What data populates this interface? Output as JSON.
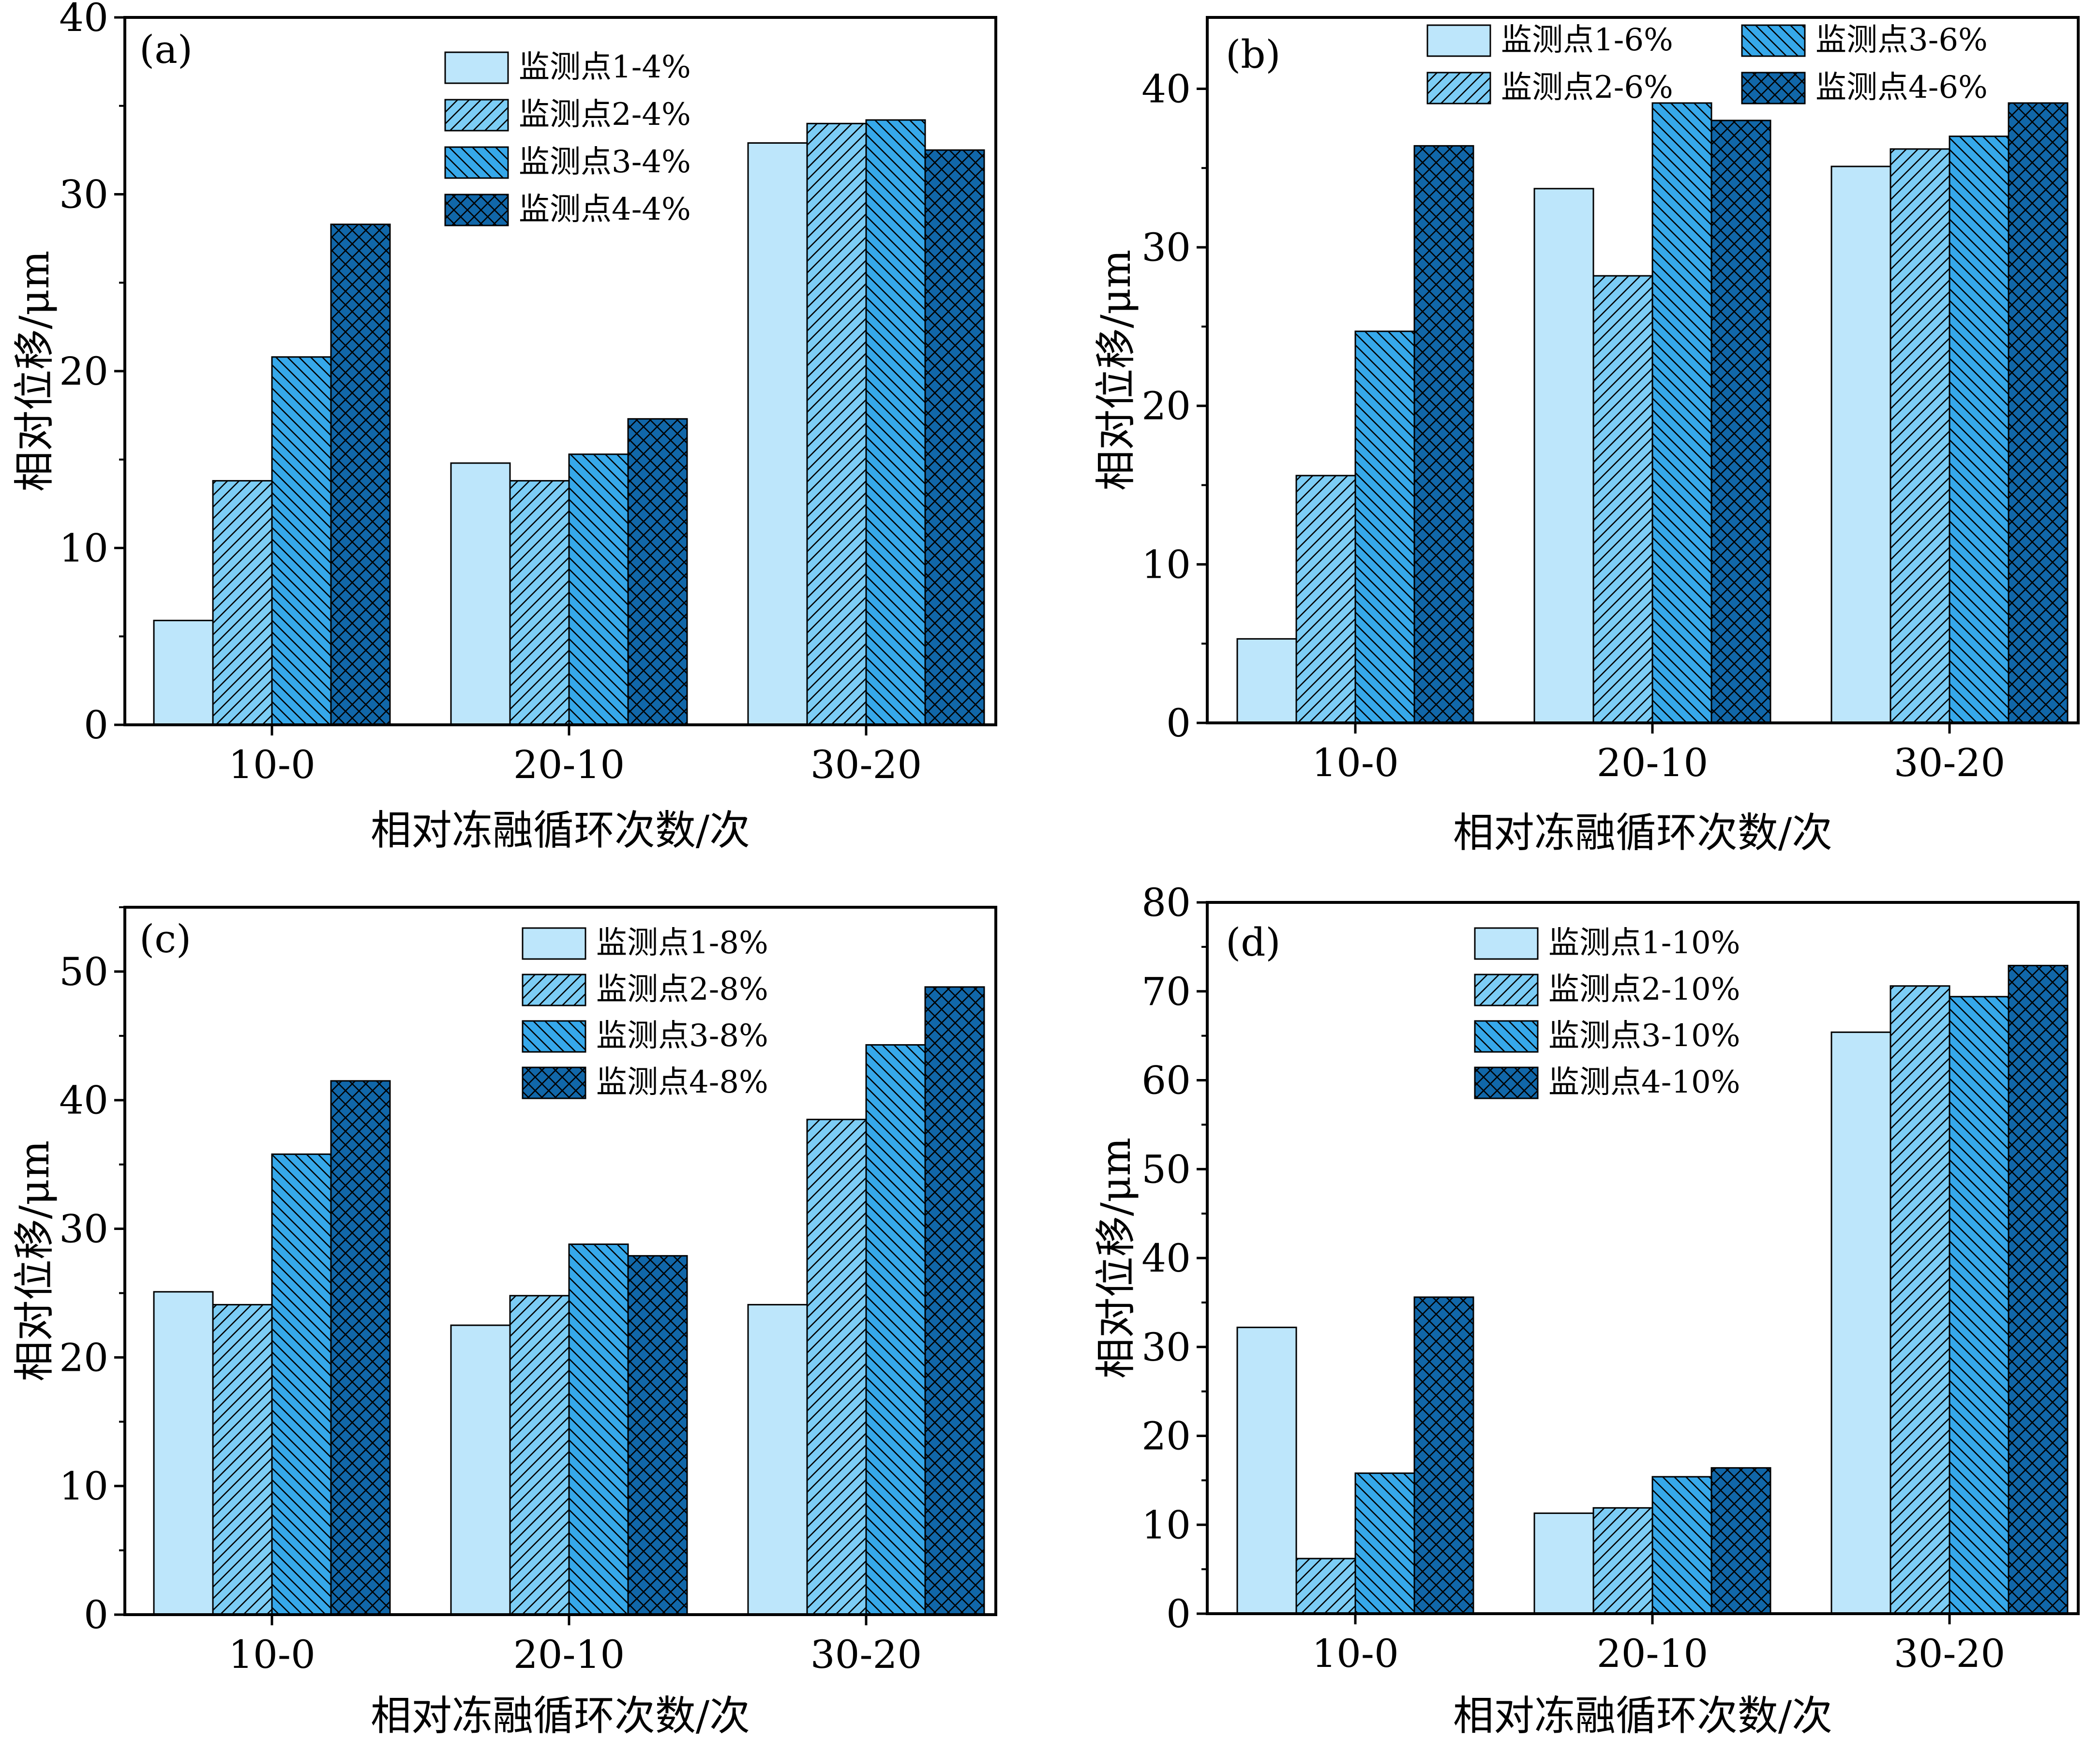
{
  "figure": {
    "colors": {
      "series1": "#bde6fb",
      "series2": "#7ccdf5",
      "series3": "#36a8ea",
      "series4": "#1167a9",
      "stroke": "#000000",
      "hatch": "#000000"
    },
    "patterns": [
      "none",
      "diag-forward",
      "diag-back",
      "crosshatch"
    ]
  },
  "chart_data": [
    {
      "type": "bar",
      "panel_label": "(a)",
      "title": "",
      "xlabel": "相对冻融循环次数/次",
      "ylabel": "相对位移/μm",
      "categories": [
        "10-0",
        "20-10",
        "30-20"
      ],
      "ylim": [
        0,
        40
      ],
      "yticks": [
        0,
        10,
        20,
        30,
        40
      ],
      "legend_position": "top-center",
      "legend_columns": 1,
      "series": [
        {
          "name": "监测点1-4%",
          "values": [
            5.9,
            14.8,
            32.9
          ]
        },
        {
          "name": "监测点2-4%",
          "values": [
            13.8,
            13.8,
            34.0
          ]
        },
        {
          "name": "监测点3-4%",
          "values": [
            20.8,
            15.3,
            34.2
          ]
        },
        {
          "name": "监测点4-4%",
          "values": [
            28.3,
            17.3,
            32.5
          ]
        }
      ]
    },
    {
      "type": "bar",
      "panel_label": "(b)",
      "title": "",
      "xlabel": "相对冻融循环次数/次",
      "ylabel": "相对位移/μm",
      "categories": [
        "10-0",
        "20-10",
        "30-20"
      ],
      "ylim": [
        0,
        44.5
      ],
      "yticks": [
        0,
        10,
        20,
        30,
        40
      ],
      "legend_position": "top",
      "legend_columns": 2,
      "series": [
        {
          "name": "监测点1-6%",
          "values": [
            5.3,
            33.7,
            35.1
          ]
        },
        {
          "name": "监测点2-6%",
          "values": [
            15.6,
            28.2,
            36.2
          ]
        },
        {
          "name": "监测点3-6%",
          "values": [
            24.7,
            39.1,
            37.0
          ]
        },
        {
          "name": "监测点4-6%",
          "values": [
            36.4,
            38.0,
            39.1
          ]
        }
      ]
    },
    {
      "type": "bar",
      "panel_label": "(c)",
      "title": "",
      "xlabel": "相对冻融循环次数/次",
      "ylabel": "相对位移/μm",
      "categories": [
        "10-0",
        "20-10",
        "30-20"
      ],
      "ylim": [
        0,
        55
      ],
      "yticks": [
        0,
        10,
        20,
        30,
        40,
        50
      ],
      "legend_position": "top-right",
      "legend_columns": 1,
      "series": [
        {
          "name": "监测点1-8%",
          "values": [
            25.1,
            22.5,
            24.1
          ]
        },
        {
          "name": "监测点2-8%",
          "values": [
            24.1,
            24.8,
            38.5
          ]
        },
        {
          "name": "监测点3-8%",
          "values": [
            35.8,
            28.8,
            44.3
          ]
        },
        {
          "name": "监测点4-8%",
          "values": [
            41.5,
            27.9,
            48.8
          ]
        }
      ]
    },
    {
      "type": "bar",
      "panel_label": "(d)",
      "title": "",
      "xlabel": "相对冻融循环次数/次",
      "ylabel": "相对位移/μm",
      "categories": [
        "10-0",
        "20-10",
        "30-20"
      ],
      "ylim": [
        0,
        80
      ],
      "yticks": [
        0,
        10,
        20,
        30,
        40,
        50,
        60,
        70,
        80
      ],
      "legend_position": "top-center",
      "legend_columns": 1,
      "series": [
        {
          "name": "监测点1-10%",
          "values": [
            32.2,
            11.3,
            65.4
          ]
        },
        {
          "name": "监测点2-10%",
          "values": [
            6.2,
            11.9,
            70.6
          ]
        },
        {
          "name": "监测点3-10%",
          "values": [
            15.8,
            15.4,
            69.4
          ]
        },
        {
          "name": "监测点4-10%",
          "values": [
            35.6,
            16.4,
            72.9
          ]
        }
      ]
    }
  ]
}
